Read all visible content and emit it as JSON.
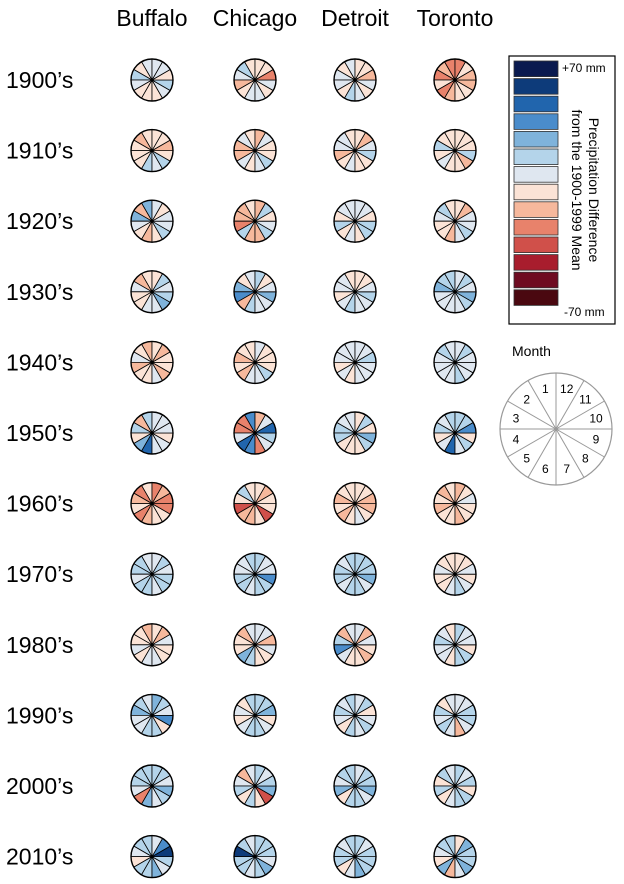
{
  "chart_data": {
    "type": "heatmap",
    "title": "",
    "columns": [
      "Buffalo",
      "Chicago",
      "Detroit",
      "Toronto"
    ],
    "rows": [
      "1900’s",
      "1910’s",
      "1920’s",
      "1930’s",
      "1940’s",
      "1950’s",
      "1960’s",
      "1970’s",
      "1980’s",
      "1990’s",
      "2000’s",
      "2010’s"
    ],
    "value_unit": "mm",
    "value_range": [
      -70,
      70
    ],
    "months": [
      1,
      2,
      3,
      4,
      5,
      6,
      7,
      8,
      9,
      10,
      11,
      12
    ],
    "legend": {
      "title": "Precipitation Difference from the 1900-1999 Mean",
      "max_label": "+70 mm",
      "min_label": "-70 mm",
      "colors": [
        "#0a1a4f",
        "#0d3b7a",
        "#2165ad",
        "#4a8ccb",
        "#7fb3db",
        "#b4d4ea",
        "#dfe7f0",
        "#fbe3d6",
        "#f6b89c",
        "#e8826b",
        "#d0504a",
        "#a81d2d",
        "#6e0b21",
        "#4a0810"
      ]
    },
    "month_key": {
      "title": "Month",
      "labels": [
        "1",
        "2",
        "3",
        "4",
        "5",
        "6",
        "7",
        "8",
        "9",
        "10",
        "11",
        "12"
      ]
    },
    "values": [
      [
        [
          10,
          -10,
          20,
          5,
          -5,
          -10,
          0,
          5,
          15,
          -5,
          10,
          5
        ],
        [
          -10,
          20,
          10,
          -15,
          -5,
          5,
          10,
          -10,
          5,
          -30,
          -5,
          -10
        ],
        [
          10,
          -5,
          5,
          5,
          -10,
          20,
          10,
          -5,
          5,
          -15,
          -5,
          0
        ],
        [
          -30,
          -20,
          -25,
          -10,
          -30,
          -20,
          -10,
          -5,
          -20,
          -15,
          -10,
          -25
        ]
      ],
      [
        [
          -10,
          -15,
          0,
          -10,
          -10,
          15,
          10,
          20,
          -5,
          -15,
          -10,
          -5
        ],
        [
          -10,
          5,
          -15,
          -15,
          10,
          -10,
          5,
          15,
          -10,
          -5,
          5,
          -15
        ],
        [
          -5,
          10,
          5,
          -15,
          -10,
          5,
          -10,
          -10,
          15,
          5,
          -15,
          -5
        ],
        [
          -5,
          -5,
          15,
          -10,
          10,
          -10,
          -10,
          -15,
          20,
          -10,
          -5,
          -5
        ]
      ],
      [
        [
          25,
          -15,
          30,
          5,
          -10,
          -15,
          -10,
          15,
          10,
          5,
          -10,
          5
        ],
        [
          -10,
          -15,
          -20,
          -25,
          15,
          -20,
          -15,
          15,
          5,
          -10,
          15,
          -15
        ],
        [
          10,
          5,
          -10,
          15,
          -10,
          5,
          -5,
          15,
          20,
          -10,
          5,
          5
        ],
        [
          -10,
          15,
          5,
          -10,
          -5,
          -15,
          5,
          15,
          10,
          5,
          -15,
          -10
        ]
      ],
      [
        [
          -10,
          -15,
          5,
          -10,
          -10,
          5,
          10,
          25,
          15,
          10,
          15,
          -5
        ],
        [
          10,
          -10,
          30,
          35,
          -15,
          20,
          10,
          5,
          25,
          10,
          -5,
          20
        ],
        [
          -5,
          5,
          10,
          -10,
          5,
          15,
          10,
          5,
          15,
          10,
          -5,
          -5
        ],
        [
          15,
          15,
          25,
          5,
          10,
          5,
          10,
          15,
          30,
          10,
          15,
          10
        ]
      ],
      [
        [
          -15,
          -10,
          5,
          -20,
          -10,
          -5,
          10,
          -15,
          -10,
          -5,
          -20,
          -10
        ],
        [
          -10,
          -5,
          -15,
          -10,
          -15,
          5,
          10,
          15,
          -5,
          -10,
          -5,
          10
        ],
        [
          5,
          5,
          10,
          -5,
          10,
          -5,
          10,
          5,
          10,
          15,
          5,
          5
        ],
        [
          10,
          15,
          10,
          5,
          10,
          10,
          15,
          5,
          10,
          10,
          20,
          5
        ]
      ],
      [
        [
          15,
          -15,
          20,
          -10,
          30,
          50,
          5,
          10,
          -5,
          10,
          5,
          10
        ],
        [
          40,
          -30,
          -30,
          5,
          50,
          40,
          -30,
          10,
          20,
          50,
          10,
          -15
        ],
        [
          5,
          10,
          15,
          20,
          -5,
          -10,
          -10,
          20,
          30,
          -10,
          15,
          -10
        ],
        [
          15,
          10,
          20,
          -10,
          5,
          45,
          10,
          15,
          -5,
          35,
          20,
          15
        ]
      ],
      [
        [
          -10,
          -25,
          -15,
          -10,
          -25,
          -20,
          -10,
          -10,
          -25,
          -30,
          -20,
          -25
        ],
        [
          -10,
          15,
          -10,
          -35,
          -20,
          -15,
          -10,
          -40,
          -5,
          -10,
          -20,
          -10
        ],
        [
          -5,
          -10,
          -15,
          -5,
          -20,
          -10,
          5,
          -10,
          -15,
          -20,
          -5,
          -10
        ],
        [
          -10,
          -15,
          -5,
          -15,
          -10,
          -5,
          -15,
          -10,
          -5,
          10,
          -5,
          -20
        ]
      ],
      [
        [
          10,
          15,
          20,
          10,
          15,
          20,
          10,
          15,
          20,
          10,
          15,
          10
        ],
        [
          15,
          10,
          5,
          15,
          20,
          10,
          15,
          20,
          35,
          10,
          5,
          15
        ],
        [
          15,
          10,
          20,
          15,
          10,
          15,
          20,
          10,
          25,
          15,
          20,
          15
        ],
        [
          -10,
          -5,
          5,
          -10,
          -10,
          10,
          15,
          5,
          -5,
          10,
          -5,
          0
        ]
      ],
      [
        [
          -15,
          -10,
          -5,
          5,
          -10,
          10,
          5,
          -5,
          -10,
          10,
          -15,
          -10
        ],
        [
          10,
          -15,
          -10,
          -5,
          30,
          15,
          -5,
          -10,
          10,
          -15,
          5,
          10
        ],
        [
          10,
          -15,
          15,
          35,
          10,
          -5,
          -10,
          -15,
          -5,
          10,
          -20,
          5
        ],
        [
          -5,
          10,
          15,
          10,
          5,
          -5,
          20,
          15,
          -10,
          5,
          10,
          15
        ]
      ],
      [
        [
          10,
          15,
          25,
          10,
          5,
          20,
          15,
          -5,
          35,
          10,
          15,
          30
        ],
        [
          15,
          -10,
          5,
          -5,
          10,
          20,
          15,
          5,
          -10,
          25,
          20,
          15
        ],
        [
          20,
          10,
          15,
          5,
          -5,
          15,
          10,
          20,
          10,
          -5,
          15,
          10
        ],
        [
          5,
          -10,
          15,
          10,
          20,
          5,
          -15,
          10,
          20,
          15,
          10,
          5
        ]
      ],
      [
        [
          15,
          20,
          15,
          10,
          -25,
          30,
          10,
          15,
          25,
          10,
          15,
          20
        ],
        [
          10,
          -15,
          10,
          20,
          -5,
          15,
          -10,
          -35,
          25,
          15,
          10,
          20
        ],
        [
          20,
          15,
          10,
          25,
          -10,
          20,
          15,
          10,
          30,
          15,
          20,
          10
        ],
        [
          10,
          20,
          -5,
          15,
          -10,
          10,
          20,
          15,
          -5,
          20,
          10,
          15
        ]
      ],
      [
        [
          15,
          20,
          10,
          -10,
          15,
          20,
          30,
          10,
          20,
          60,
          40,
          10
        ],
        [
          10,
          15,
          55,
          15,
          20,
          10,
          15,
          25,
          10,
          20,
          15,
          20
        ],
        [
          15,
          10,
          20,
          15,
          -5,
          10,
          25,
          20,
          15,
          20,
          10,
          15
        ],
        [
          20,
          15,
          10,
          -10,
          30,
          -15,
          10,
          25,
          15,
          20,
          25,
          -10
        ]
      ]
    ]
  }
}
